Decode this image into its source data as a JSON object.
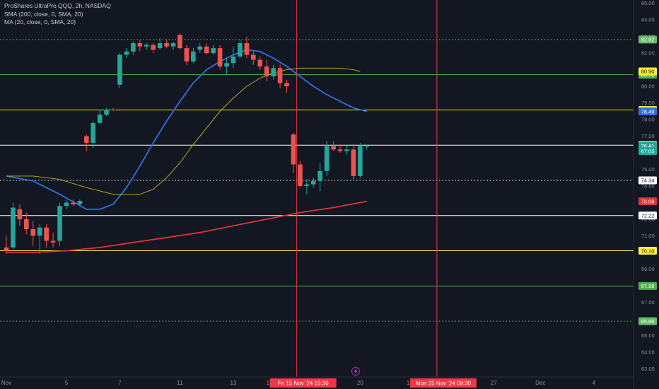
{
  "legend": {
    "title": "ProShares UltraPro QQQ, 2h, NASDAQ",
    "sma": "SMA (200, close, 0, SMA, 20)",
    "ma": "MA (20, close, 0, SMA, 20)"
  },
  "colors": {
    "background": "#131722",
    "up": "#26a69a",
    "down": "#ef5350",
    "sma200": "#e0323a",
    "ma20": "#2f6fe0",
    "yellow_curve": "#c9b022",
    "green_level": "#4caf50",
    "yellow_level": "#ffeb3b",
    "white_level": "#ffffff",
    "dotted_level": "#66bb6a",
    "vline": "#f23645",
    "axis_text": "#8b8f99"
  },
  "chart_data": {
    "type": "candlestick",
    "symbol": "ProShares UltraPro QQQ",
    "interval": "2h",
    "exchange": "NASDAQ",
    "y_range": [
      62.5,
      85.2
    ],
    "y_ticks": [
      "85.00",
      "84.00",
      "83.00",
      "82.00",
      "81.00",
      "80.00",
      "79.00",
      "78.00",
      "77.00",
      "76.00",
      "75.00",
      "74.00",
      "73.00",
      "72.00",
      "71.00",
      "70.00",
      "69.00",
      "68.00",
      "67.00",
      "66.00",
      "65.00",
      "64.00",
      "63.00"
    ],
    "x_ticks": [
      "Nov",
      "5",
      "7",
      "11",
      "13",
      "13:30",
      "20",
      "13:30",
      "27",
      "Dec",
      "4"
    ],
    "x_tick_index": [
      0,
      9,
      17,
      26,
      34,
      40,
      53,
      61,
      73,
      80,
      88
    ],
    "index_range": [
      0,
      93
    ],
    "candles": [
      {
        "i": 0,
        "o": 70.3,
        "h": 71.0,
        "l": 69.9,
        "c": 70.1
      },
      {
        "i": 1,
        "o": 70.3,
        "h": 73.0,
        "l": 70.2,
        "c": 72.7
      },
      {
        "i": 2,
        "o": 72.6,
        "h": 72.9,
        "l": 71.6,
        "c": 72.0
      },
      {
        "i": 3,
        "o": 72.0,
        "h": 72.4,
        "l": 71.1,
        "c": 71.4
      },
      {
        "i": 4,
        "o": 71.4,
        "h": 71.9,
        "l": 70.4,
        "c": 71.0
      },
      {
        "i": 5,
        "o": 71.0,
        "h": 71.7,
        "l": 69.9,
        "c": 71.5
      },
      {
        "i": 6,
        "o": 71.5,
        "h": 71.7,
        "l": 70.3,
        "c": 70.7
      },
      {
        "i": 7,
        "o": 70.7,
        "h": 71.2,
        "l": 70.3,
        "c": 70.6
      },
      {
        "i": 8,
        "o": 70.7,
        "h": 73.0,
        "l": 70.4,
        "c": 72.8
      },
      {
        "i": 9,
        "o": 72.8,
        "h": 73.2,
        "l": 72.6,
        "c": 73.0
      },
      {
        "i": 10,
        "o": 73.0,
        "h": 73.2,
        "l": 72.8,
        "c": 72.9
      },
      {
        "i": 11,
        "o": 72.9,
        "h": 73.2,
        "l": 72.8,
        "c": 73.1
      },
      {
        "i": 12,
        "o": 77.0,
        "h": 77.1,
        "l": 76.1,
        "c": 76.6
      },
      {
        "i": 13,
        "o": 76.6,
        "h": 77.9,
        "l": 76.3,
        "c": 77.8
      },
      {
        "i": 14,
        "o": 77.8,
        "h": 78.6,
        "l": 77.7,
        "c": 78.3
      },
      {
        "i": 15,
        "o": 78.3,
        "h": 78.7,
        "l": 78.2,
        "c": 78.6
      },
      {
        "i": 16,
        "o": 78.6,
        "h": 78.7,
        "l": 78.5,
        "c": 78.58
      },
      {
        "i": 17,
        "o": 80.1,
        "h": 82.0,
        "l": 79.9,
        "c": 81.9
      },
      {
        "i": 18,
        "o": 81.9,
        "h": 82.3,
        "l": 81.7,
        "c": 82.1
      },
      {
        "i": 19,
        "o": 82.1,
        "h": 82.7,
        "l": 81.9,
        "c": 82.6
      },
      {
        "i": 20,
        "o": 82.6,
        "h": 82.8,
        "l": 82.1,
        "c": 82.4
      },
      {
        "i": 21,
        "o": 82.4,
        "h": 82.6,
        "l": 82.2,
        "c": 82.5
      },
      {
        "i": 22,
        "o": 82.5,
        "h": 82.6,
        "l": 82.0,
        "c": 82.2
      },
      {
        "i": 23,
        "o": 82.3,
        "h": 82.9,
        "l": 82.2,
        "c": 82.6
      },
      {
        "i": 24,
        "o": 82.6,
        "h": 82.8,
        "l": 82.3,
        "c": 82.4
      },
      {
        "i": 25,
        "o": 82.4,
        "h": 82.7,
        "l": 82.2,
        "c": 82.6
      },
      {
        "i": 26,
        "o": 83.1,
        "h": 83.2,
        "l": 82.2,
        "c": 82.3
      },
      {
        "i": 27,
        "o": 82.3,
        "h": 82.5,
        "l": 81.3,
        "c": 81.5
      },
      {
        "i": 28,
        "o": 81.5,
        "h": 82.3,
        "l": 81.4,
        "c": 82.1
      },
      {
        "i": 29,
        "o": 82.2,
        "h": 82.6,
        "l": 82.0,
        "c": 82.4
      },
      {
        "i": 30,
        "o": 82.4,
        "h": 82.6,
        "l": 81.9,
        "c": 82.0
      },
      {
        "i": 31,
        "o": 82.0,
        "h": 82.5,
        "l": 81.9,
        "c": 82.3
      },
      {
        "i": 32,
        "o": 82.3,
        "h": 82.5,
        "l": 81.0,
        "c": 81.2
      },
      {
        "i": 33,
        "o": 81.2,
        "h": 81.7,
        "l": 80.7,
        "c": 81.4
      },
      {
        "i": 34,
        "o": 81.4,
        "h": 82.4,
        "l": 81.1,
        "c": 81.8
      },
      {
        "i": 35,
        "o": 81.8,
        "h": 82.8,
        "l": 81.7,
        "c": 82.6
      },
      {
        "i": 36,
        "o": 82.6,
        "h": 83.0,
        "l": 81.7,
        "c": 81.9
      },
      {
        "i": 37,
        "o": 81.9,
        "h": 82.1,
        "l": 81.3,
        "c": 81.6
      },
      {
        "i": 38,
        "o": 81.6,
        "h": 81.8,
        "l": 81.0,
        "c": 81.2
      },
      {
        "i": 39,
        "o": 81.2,
        "h": 81.6,
        "l": 80.3,
        "c": 80.6
      },
      {
        "i": 40,
        "o": 80.6,
        "h": 81.3,
        "l": 80.4,
        "c": 81.1
      },
      {
        "i": 41,
        "o": 81.1,
        "h": 81.3,
        "l": 79.9,
        "c": 80.2
      },
      {
        "i": 42,
        "o": 80.2,
        "h": 80.4,
        "l": 79.6,
        "c": 80.0
      },
      {
        "i": 43,
        "o": 77.1,
        "h": 77.2,
        "l": 74.8,
        "c": 75.3
      },
      {
        "i": 44,
        "o": 75.3,
        "h": 75.5,
        "l": 73.9,
        "c": 74.0
      },
      {
        "i": 45,
        "o": 74.0,
        "h": 74.4,
        "l": 73.5,
        "c": 74.1
      },
      {
        "i": 46,
        "o": 74.1,
        "h": 74.5,
        "l": 73.9,
        "c": 74.3
      },
      {
        "i": 47,
        "o": 74.3,
        "h": 75.4,
        "l": 73.7,
        "c": 74.9
      },
      {
        "i": 48,
        "o": 74.9,
        "h": 76.7,
        "l": 74.6,
        "c": 76.4
      },
      {
        "i": 49,
        "o": 76.4,
        "h": 76.7,
        "l": 76.1,
        "c": 76.2
      },
      {
        "i": 50,
        "o": 76.2,
        "h": 76.5,
        "l": 76.0,
        "c": 76.1
      },
      {
        "i": 51,
        "o": 76.1,
        "h": 76.4,
        "l": 75.9,
        "c": 76.2
      },
      {
        "i": 52,
        "o": 76.2,
        "h": 76.5,
        "l": 74.3,
        "c": 74.6
      },
      {
        "i": 53,
        "o": 74.6,
        "h": 76.6,
        "l": 74.5,
        "c": 76.4
      },
      {
        "i": 54,
        "o": 76.4,
        "h": 76.5,
        "l": 76.2,
        "c": 76.41
      }
    ],
    "series": [
      {
        "name": "SMA (200, close, 0, SMA, 20)",
        "color": "#e0323a",
        "x": [
          0,
          4,
          9,
          14,
          19,
          24,
          29,
          34,
          39,
          44,
          49,
          54
        ],
        "y": [
          70.0,
          70.0,
          70.1,
          70.3,
          70.6,
          70.9,
          71.2,
          71.6,
          72.0,
          72.4,
          72.7,
          73.08
        ]
      },
      {
        "name": "MA (20, close, 0, SMA, 20)",
        "color": "#2f6fe0",
        "x": [
          0,
          4,
          8,
          12,
          14,
          16,
          18,
          20,
          22,
          24,
          26,
          28,
          30,
          32,
          34,
          36,
          38,
          40,
          42,
          44,
          46,
          48,
          50,
          52,
          54
        ],
        "y": [
          74.6,
          74.3,
          73.5,
          72.6,
          72.6,
          72.9,
          73.9,
          75.2,
          76.6,
          77.9,
          79.1,
          80.2,
          81.0,
          81.5,
          81.9,
          82.2,
          82.1,
          81.7,
          81.2,
          80.6,
          80.0,
          79.5,
          79.1,
          78.7,
          78.49
        ]
      },
      {
        "x": [
          0,
          4,
          8,
          12,
          16,
          18,
          20,
          22,
          24,
          26,
          28,
          30,
          32,
          34,
          36,
          38,
          40,
          42,
          44,
          46,
          48,
          50,
          52,
          53
        ],
        "y": [
          74.6,
          74.6,
          74.4,
          73.9,
          73.5,
          73.5,
          73.5,
          73.8,
          74.5,
          75.4,
          76.5,
          77.5,
          78.5,
          79.3,
          80.0,
          80.5,
          80.8,
          81.0,
          81.1,
          81.1,
          81.1,
          81.1,
          81.0,
          80.9
        ]
      }
    ],
    "hlines": [
      {
        "y": 82.82,
        "label": "82.82",
        "style": "dotted",
        "color": "#66bb6a"
      },
      {
        "y": 80.7,
        "label": "80.70",
        "style": "solid",
        "color": "#4caf50"
      },
      {
        "y": 78.58,
        "label": "78.58",
        "style": "solid",
        "color": "#ffeb3b"
      },
      {
        "y": 76.46,
        "label": "76.46",
        "style": "solid",
        "color": "#ffffff"
      },
      {
        "y": 74.34,
        "label": "74.34",
        "style": "dotted",
        "color": "#ffffff"
      },
      {
        "y": 72.22,
        "label": "72.22",
        "style": "solid",
        "color": "#ffffff"
      },
      {
        "y": 70.1,
        "label": "70.10",
        "style": "solid",
        "color": "#ffeb3b"
      },
      {
        "y": 67.98,
        "label": "67.98",
        "style": "solid",
        "color": "#4caf50"
      },
      {
        "y": 65.86,
        "label": "65.86",
        "style": "dotted",
        "color": "#66bb6a"
      }
    ],
    "price_tags": [
      {
        "y": 80.9,
        "label": "80.90",
        "bg": "#ffeb3b",
        "fg": "#131722"
      },
      {
        "y": 78.49,
        "label": "78.49",
        "bg": "#2f6fe0",
        "fg": "#ffffff"
      },
      {
        "y": 76.41,
        "label": "76.41",
        "bg": "#26a69a",
        "fg": "#ffffff"
      },
      {
        "y": 76.1,
        "label": "67:05",
        "bg": "#26a69a",
        "fg": "#ffffff"
      },
      {
        "y": 73.08,
        "label": "73.08",
        "bg": "#e0323a",
        "fg": "#ffffff"
      }
    ],
    "vlines": [
      {
        "i": 43.5,
        "label": "Fri 15 Nov '24   15:30",
        "color": "#f23645"
      },
      {
        "i": 64.5,
        "label": "Mon 25 Nov '24   09:30",
        "color": "#f23645"
      }
    ]
  }
}
